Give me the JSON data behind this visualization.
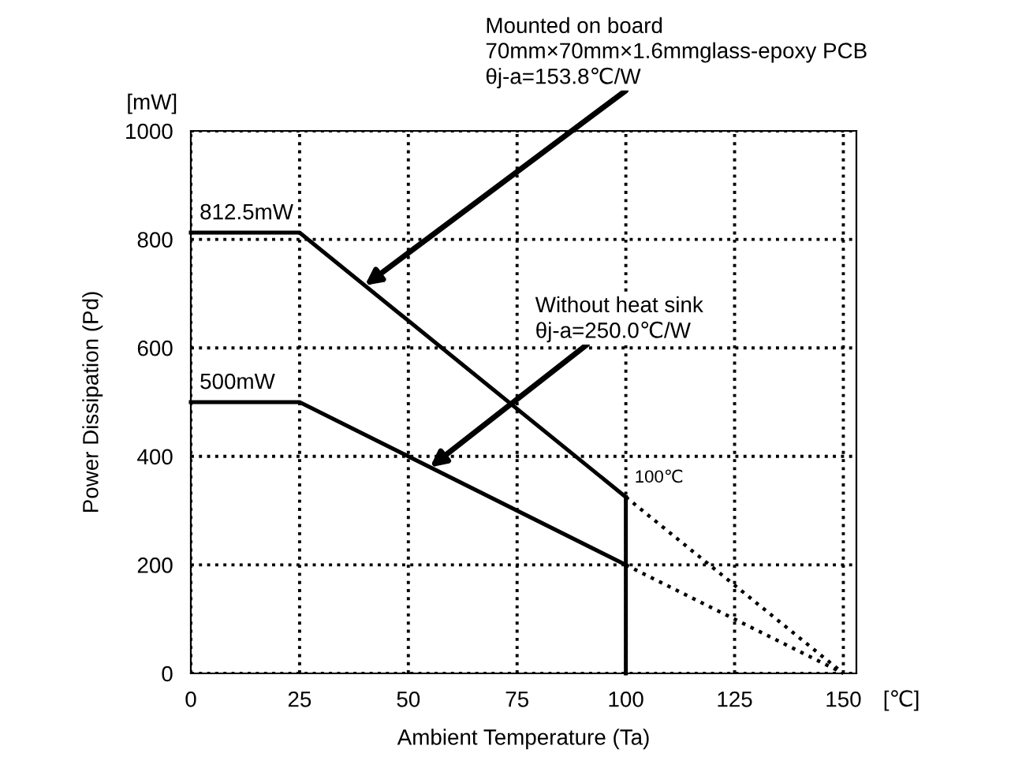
{
  "chart_data": {
    "type": "line",
    "xlabel": "Ambient Temperature (Ta)",
    "ylabel": "Power Dissipation (Pd)",
    "xlim": [
      0,
      153
    ],
    "ylim": [
      0,
      1000
    ],
    "xticks": [
      0,
      25,
      50,
      75,
      100,
      125,
      150
    ],
    "yticks": [
      0,
      200,
      400,
      600,
      800,
      1000
    ],
    "grid": true,
    "legend": false,
    "marker": "none",
    "series": [
      {
        "color": "#000000",
        "x": [
          0,
          25,
          100
        ],
        "values": [
          812.5,
          812.5,
          325
        ],
        "line_style": "solid"
      },
      {
        "color": "#000000",
        "x": [
          100,
          150
        ],
        "values": [
          325,
          0
        ],
        "line_style": "dotted"
      },
      {
        "color": "#000000",
        "x": [
          0,
          25,
          100
        ],
        "values": [
          500,
          500,
          200
        ],
        "line_style": "solid"
      },
      {
        "color": "#000000",
        "x": [
          100,
          150
        ],
        "values": [
          200,
          0
        ],
        "line_style": "dotted"
      },
      {
        "color": "#000000",
        "x": [
          100,
          100
        ],
        "values": [
          0,
          325
        ],
        "line_style": "solid"
      }
    ],
    "annotations": [
      {
        "text": "Mounted on board\n70mm×70mm×1.6mmglass-epoxy PCB\nθj-a=153.8℃/W",
        "x": 40,
        "y": 715
      },
      {
        "text": "Without heat sink\nθj-a=250.0℃/W",
        "x": 55,
        "y": 380
      },
      {
        "text": "812.5mW",
        "x": 0,
        "y": 812.5
      },
      {
        "text": "500mW",
        "x": 0,
        "y": 500
      },
      {
        "text": "100℃",
        "x": 100,
        "y": 325
      },
      "[mW]",
      "[℃]"
    ]
  }
}
